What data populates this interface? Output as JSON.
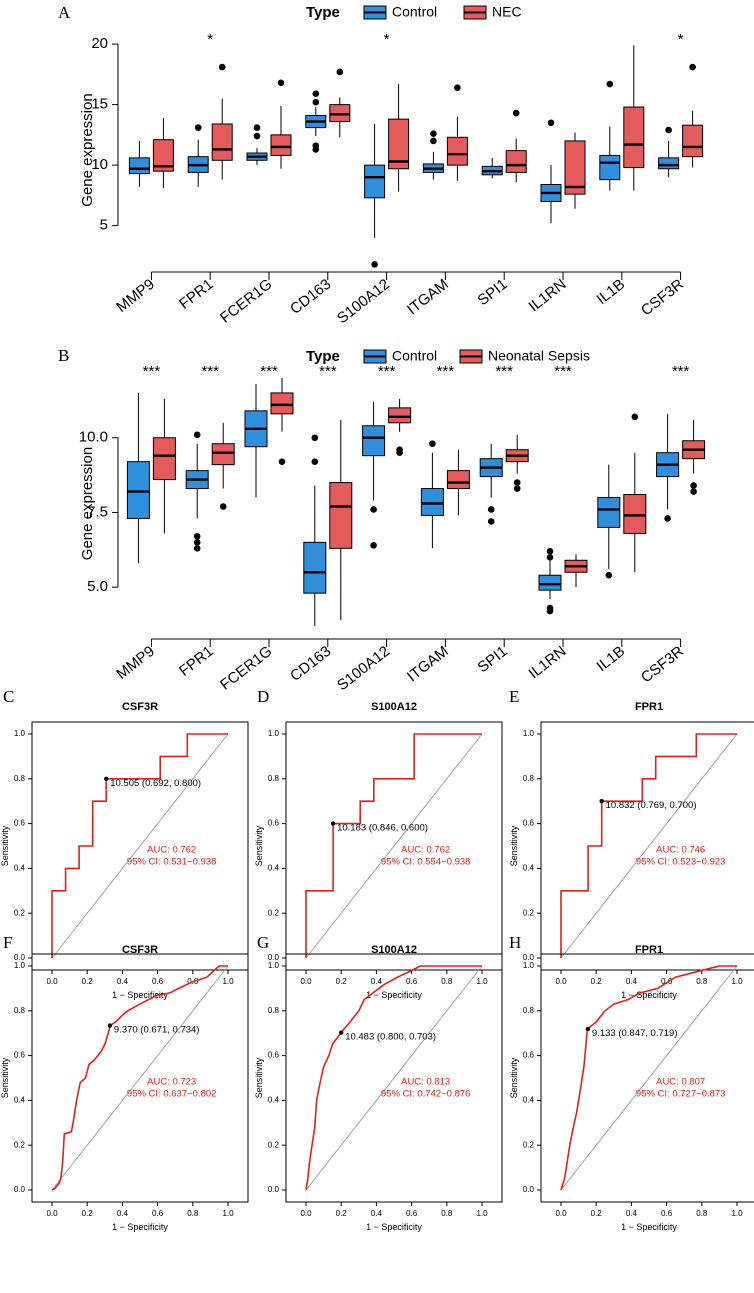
{
  "box_panels": [
    {
      "label": "A",
      "legend": {
        "title": "Type",
        "groups": [
          "Control",
          "NEC"
        ]
      },
      "ylabel": "Gene expression",
      "ylim": [
        1.5,
        21
      ],
      "yticks": [
        5,
        10,
        15,
        20
      ],
      "ytick_labels": [
        "5",
        "10",
        "15",
        "20"
      ],
      "genes": [
        "MMP9",
        "FPR1",
        "FCER1G",
        "CD163",
        "S100A12",
        "ITGAM",
        "SPI1",
        "IL1RN",
        "IL1B",
        "CSF3R"
      ],
      "significance": [
        "",
        "*",
        "",
        "",
        "*",
        "",
        "",
        "",
        "",
        "*"
      ],
      "control": [
        {
          "q1": 9.3,
          "median": 9.7,
          "q3": 10.6,
          "lo": 8.2,
          "hi": 12.0,
          "outliers": []
        },
        {
          "q1": 9.4,
          "median": 10.0,
          "q3": 10.7,
          "lo": 8.2,
          "hi": 12.1,
          "outliers": [
            13.1
          ]
        },
        {
          "q1": 10.4,
          "median": 10.7,
          "q3": 11.0,
          "lo": 10.0,
          "hi": 11.4,
          "outliers": [
            12.4,
            13.1
          ]
        },
        {
          "q1": 13.1,
          "median": 13.6,
          "q3": 14.1,
          "lo": 12.4,
          "hi": 14.8,
          "outliers": [
            15.9,
            15.2,
            11.6,
            11.3
          ]
        },
        {
          "q1": 7.3,
          "median": 9.0,
          "q3": 10.0,
          "lo": 4.0,
          "hi": 13.4,
          "outliers": [
            1.8
          ]
        },
        {
          "q1": 9.4,
          "median": 9.7,
          "q3": 10.1,
          "lo": 8.8,
          "hi": 11.1,
          "outliers": [
            12.0,
            12.6
          ]
        },
        {
          "q1": 9.2,
          "median": 9.5,
          "q3": 9.9,
          "lo": 8.9,
          "hi": 10.6,
          "outliers": []
        },
        {
          "q1": 7.0,
          "median": 7.7,
          "q3": 8.4,
          "lo": 5.2,
          "hi": 10.0,
          "outliers": [
            13.5
          ]
        },
        {
          "q1": 8.8,
          "median": 10.2,
          "q3": 10.8,
          "lo": 7.9,
          "hi": 13.2,
          "outliers": [
            16.7
          ]
        },
        {
          "q1": 9.7,
          "median": 10.0,
          "q3": 10.6,
          "lo": 9.0,
          "hi": 12.0,
          "outliers": [
            12.9
          ]
        }
      ],
      "case": [
        {
          "q1": 9.5,
          "median": 9.9,
          "q3": 12.1,
          "lo": 8.1,
          "hi": 13.9,
          "outliers": []
        },
        {
          "q1": 10.4,
          "median": 11.3,
          "q3": 13.4,
          "lo": 8.8,
          "hi": 15.5,
          "outliers": [
            18.1
          ]
        },
        {
          "q1": 10.8,
          "median": 11.5,
          "q3": 12.5,
          "lo": 9.7,
          "hi": 14.9,
          "outliers": [
            16.8
          ]
        },
        {
          "q1": 13.6,
          "median": 14.2,
          "q3": 15.0,
          "lo": 12.3,
          "hi": 15.6,
          "outliers": [
            17.7
          ]
        },
        {
          "q1": 9.7,
          "median": 10.3,
          "q3": 13.8,
          "lo": 7.8,
          "hi": 16.7,
          "outliers": []
        },
        {
          "q1": 10.0,
          "median": 10.9,
          "q3": 12.3,
          "lo": 8.7,
          "hi": 14.0,
          "outliers": [
            16.4
          ]
        },
        {
          "q1": 9.4,
          "median": 10.0,
          "q3": 11.2,
          "lo": 8.6,
          "hi": 12.2,
          "outliers": [
            14.3
          ]
        },
        {
          "q1": 7.6,
          "median": 8.2,
          "q3": 12.0,
          "lo": 6.4,
          "hi": 12.7,
          "outliers": []
        },
        {
          "q1": 9.8,
          "median": 11.7,
          "q3": 14.8,
          "lo": 7.9,
          "hi": 19.9,
          "outliers": []
        },
        {
          "q1": 10.7,
          "median": 11.5,
          "q3": 13.3,
          "lo": 9.8,
          "hi": 14.5,
          "outliers": [
            18.1
          ]
        }
      ]
    },
    {
      "label": "B",
      "legend": {
        "title": "Type",
        "groups": [
          "Control",
          "Neonatal Sepsis"
        ]
      },
      "ylabel": "Gene expression",
      "ylim": [
        3.4,
        12.2
      ],
      "yticks": [
        5.0,
        7.5,
        10.0
      ],
      "ytick_labels": [
        "5.0",
        "7.5",
        "10.0"
      ],
      "genes": [
        "MMP9",
        "FPR1",
        "FCER1G",
        "CD163",
        "S100A12",
        "ITGAM",
        "SPI1",
        "IL1RN",
        "IL1B",
        "CSF3R"
      ],
      "significance": [
        "***",
        "***",
        "***",
        "***",
        "***",
        "***",
        "***",
        "***",
        "",
        "***"
      ],
      "control": [
        {
          "q1": 7.3,
          "median": 8.2,
          "q3": 9.2,
          "lo": 5.8,
          "hi": 11.5,
          "outliers": []
        },
        {
          "q1": 8.3,
          "median": 8.6,
          "q3": 8.9,
          "lo": 7.3,
          "hi": 9.8,
          "outliers": [
            6.7,
            6.5,
            6.3,
            10.1
          ]
        },
        {
          "q1": 9.7,
          "median": 10.3,
          "q3": 10.9,
          "lo": 8.0,
          "hi": 11.8,
          "outliers": []
        },
        {
          "q1": 4.8,
          "median": 5.5,
          "q3": 6.5,
          "lo": 3.7,
          "hi": 8.4,
          "outliers": [
            10.0,
            9.2
          ]
        },
        {
          "q1": 9.4,
          "median": 10.0,
          "q3": 10.4,
          "lo": 7.9,
          "hi": 11.2,
          "outliers": [
            7.6,
            6.4
          ]
        },
        {
          "q1": 7.4,
          "median": 7.8,
          "q3": 8.3,
          "lo": 6.3,
          "hi": 9.5,
          "outliers": [
            9.8
          ]
        },
        {
          "q1": 8.7,
          "median": 9.0,
          "q3": 9.3,
          "lo": 8.0,
          "hi": 9.8,
          "outliers": [
            7.6,
            7.2
          ]
        },
        {
          "q1": 4.9,
          "median": 5.1,
          "q3": 5.4,
          "lo": 4.6,
          "hi": 5.9,
          "outliers": [
            6.2,
            6.0,
            4.3,
            4.2
          ]
        },
        {
          "q1": 7.0,
          "median": 7.6,
          "q3": 8.0,
          "lo": 5.6,
          "hi": 9.1,
          "outliers": [
            5.4
          ]
        },
        {
          "q1": 8.7,
          "median": 9.1,
          "q3": 9.5,
          "lo": 7.6,
          "hi": 10.8,
          "outliers": [
            7.3
          ]
        }
      ],
      "case": [
        {
          "q1": 8.6,
          "median": 9.4,
          "q3": 10.0,
          "lo": 6.8,
          "hi": 11.3,
          "outliers": []
        },
        {
          "q1": 9.1,
          "median": 9.5,
          "q3": 9.8,
          "lo": 8.3,
          "hi": 10.5,
          "outliers": [
            7.7
          ]
        },
        {
          "q1": 10.8,
          "median": 11.1,
          "q3": 11.5,
          "lo": 10.2,
          "hi": 12.0,
          "outliers": [
            9.2
          ]
        },
        {
          "q1": 6.3,
          "median": 7.7,
          "q3": 8.5,
          "lo": 3.9,
          "hi": 10.6,
          "outliers": []
        },
        {
          "q1": 10.5,
          "median": 10.7,
          "q3": 11.0,
          "lo": 10.2,
          "hi": 11.3,
          "outliers": [
            9.6,
            9.5
          ]
        },
        {
          "q1": 8.3,
          "median": 8.5,
          "q3": 8.9,
          "lo": 7.4,
          "hi": 9.6,
          "outliers": []
        },
        {
          "q1": 9.2,
          "median": 9.4,
          "q3": 9.6,
          "lo": 8.8,
          "hi": 10.1,
          "outliers": [
            8.5,
            8.3
          ]
        },
        {
          "q1": 5.5,
          "median": 5.7,
          "q3": 5.9,
          "lo": 5.0,
          "hi": 6.1,
          "outliers": []
        },
        {
          "q1": 6.8,
          "median": 7.4,
          "q3": 8.1,
          "lo": 5.5,
          "hi": 9.5,
          "outliers": [
            10.7
          ]
        },
        {
          "q1": 9.3,
          "median": 9.6,
          "q3": 9.9,
          "lo": 8.8,
          "hi": 10.6,
          "outliers": [
            8.4,
            8.2
          ]
        }
      ]
    }
  ],
  "roc_panels": [
    {
      "label": "C",
      "title": "CSF3R",
      "cutoff_label": "10.505 (0.692, 0.800)",
      "cutoff": [
        0.308,
        0.8
      ],
      "auc": "AUC: 0.762",
      "ci": "95% CI: 0.531−0.938",
      "curve": [
        [
          0,
          0
        ],
        [
          0,
          0.3
        ],
        [
          0.077,
          0.3
        ],
        [
          0.077,
          0.4
        ],
        [
          0.154,
          0.4
        ],
        [
          0.154,
          0.5
        ],
        [
          0.231,
          0.5
        ],
        [
          0.231,
          0.7
        ],
        [
          0.308,
          0.7
        ],
        [
          0.308,
          0.8
        ],
        [
          0.615,
          0.8
        ],
        [
          0.615,
          0.9
        ],
        [
          0.769,
          0.9
        ],
        [
          0.769,
          1.0
        ],
        [
          1,
          1
        ]
      ]
    },
    {
      "label": "D",
      "title": "S100A12",
      "cutoff_label": "10.183 (0.846, 0.600)",
      "cutoff": [
        0.154,
        0.6
      ],
      "auc": "AUC: 0.762",
      "ci": "95% CI: 0.554−0.938",
      "curve": [
        [
          0,
          0
        ],
        [
          0,
          0.3
        ],
        [
          0.154,
          0.3
        ],
        [
          0.154,
          0.6
        ],
        [
          0.308,
          0.6
        ],
        [
          0.308,
          0.7
        ],
        [
          0.385,
          0.7
        ],
        [
          0.385,
          0.8
        ],
        [
          0.615,
          0.8
        ],
        [
          0.615,
          1.0
        ],
        [
          1,
          1
        ]
      ]
    },
    {
      "label": "E",
      "title": "FPR1",
      "cutoff_label": "10.832 (0.769, 0.700)",
      "cutoff": [
        0.231,
        0.7
      ],
      "auc": "AUC: 0.746",
      "ci": "95% CI: 0.523−0.923",
      "curve": [
        [
          0,
          0
        ],
        [
          0,
          0.3
        ],
        [
          0.154,
          0.3
        ],
        [
          0.154,
          0.5
        ],
        [
          0.231,
          0.5
        ],
        [
          0.231,
          0.7
        ],
        [
          0.462,
          0.7
        ],
        [
          0.462,
          0.8
        ],
        [
          0.538,
          0.8
        ],
        [
          0.538,
          0.9
        ],
        [
          0.769,
          0.9
        ],
        [
          0.769,
          1.0
        ],
        [
          1,
          1
        ]
      ]
    },
    {
      "label": "F",
      "title": "CSF3R",
      "cutoff_label": "9.370 (0.671, 0.734)",
      "cutoff": [
        0.329,
        0.734
      ],
      "auc": "AUC: 0.723",
      "ci": "95% CI: 0.637−0.802",
      "curve": [
        [
          0,
          0
        ],
        [
          0.02,
          0.01
        ],
        [
          0.04,
          0.03
        ],
        [
          0.05,
          0.05
        ],
        [
          0.06,
          0.12
        ],
        [
          0.07,
          0.25
        ],
        [
          0.11,
          0.26
        ],
        [
          0.12,
          0.3
        ],
        [
          0.14,
          0.4
        ],
        [
          0.16,
          0.48
        ],
        [
          0.19,
          0.5
        ],
        [
          0.21,
          0.56
        ],
        [
          0.24,
          0.58
        ],
        [
          0.26,
          0.6
        ],
        [
          0.28,
          0.62
        ],
        [
          0.3,
          0.65
        ],
        [
          0.32,
          0.7
        ],
        [
          0.33,
          0.734
        ],
        [
          0.36,
          0.75
        ],
        [
          0.4,
          0.78
        ],
        [
          0.43,
          0.8
        ],
        [
          0.5,
          0.83
        ],
        [
          0.55,
          0.85
        ],
        [
          0.6,
          0.87
        ],
        [
          0.67,
          0.88
        ],
        [
          0.72,
          0.9
        ],
        [
          0.8,
          0.93
        ],
        [
          0.88,
          0.95
        ],
        [
          0.92,
          0.98
        ],
        [
          0.95,
          1.0
        ],
        [
          1,
          1
        ]
      ]
    },
    {
      "label": "G",
      "title": "S100A12",
      "cutoff_label": "10.483 (0.800, 0.703)",
      "cutoff": [
        0.2,
        0.703
      ],
      "auc": "AUC: 0.813",
      "ci": "95% CI: 0.742−0.876",
      "curve": [
        [
          0,
          0
        ],
        [
          0.01,
          0.05
        ],
        [
          0.02,
          0.12
        ],
        [
          0.03,
          0.18
        ],
        [
          0.05,
          0.28
        ],
        [
          0.06,
          0.4
        ],
        [
          0.08,
          0.48
        ],
        [
          0.1,
          0.55
        ],
        [
          0.13,
          0.6
        ],
        [
          0.15,
          0.65
        ],
        [
          0.2,
          0.703
        ],
        [
          0.25,
          0.75
        ],
        [
          0.3,
          0.8
        ],
        [
          0.33,
          0.85
        ],
        [
          0.38,
          0.88
        ],
        [
          0.45,
          0.92
        ],
        [
          0.52,
          0.95
        ],
        [
          0.6,
          0.98
        ],
        [
          0.65,
          1.0
        ],
        [
          1,
          1
        ]
      ]
    },
    {
      "label": "H",
      "title": "FPR1",
      "cutoff_label": "9.133 (0.847, 0.719)",
      "cutoff": [
        0.153,
        0.719
      ],
      "auc": "AUC: 0.807",
      "ci": "95% CI: 0.727−0.873",
      "curve": [
        [
          0,
          0
        ],
        [
          0.02,
          0.05
        ],
        [
          0.03,
          0.1
        ],
        [
          0.05,
          0.2
        ],
        [
          0.07,
          0.28
        ],
        [
          0.09,
          0.35
        ],
        [
          0.11,
          0.45
        ],
        [
          0.13,
          0.55
        ],
        [
          0.15,
          0.719
        ],
        [
          0.2,
          0.75
        ],
        [
          0.25,
          0.8
        ],
        [
          0.3,
          0.83
        ],
        [
          0.38,
          0.85
        ],
        [
          0.45,
          0.88
        ],
        [
          0.55,
          0.9
        ],
        [
          0.65,
          0.95
        ],
        [
          0.75,
          0.97
        ],
        [
          0.85,
          0.99
        ],
        [
          0.9,
          1.0
        ],
        [
          1,
          1
        ]
      ]
    }
  ],
  "roc_axes": {
    "xlabel": "1 − Specificity",
    "ylabel": "Sensitivity",
    "ticks": [
      0.0,
      0.2,
      0.4,
      0.6,
      0.8,
      1.0
    ],
    "tick_labels": [
      "0.0",
      "0.2",
      "0.4",
      "0.6",
      "0.8",
      "1.0"
    ]
  },
  "colors": {
    "control": "#2f8fdc",
    "case": "#e55a5a",
    "roc": "#e0201b",
    "diagonal": "#a0a0a0"
  }
}
